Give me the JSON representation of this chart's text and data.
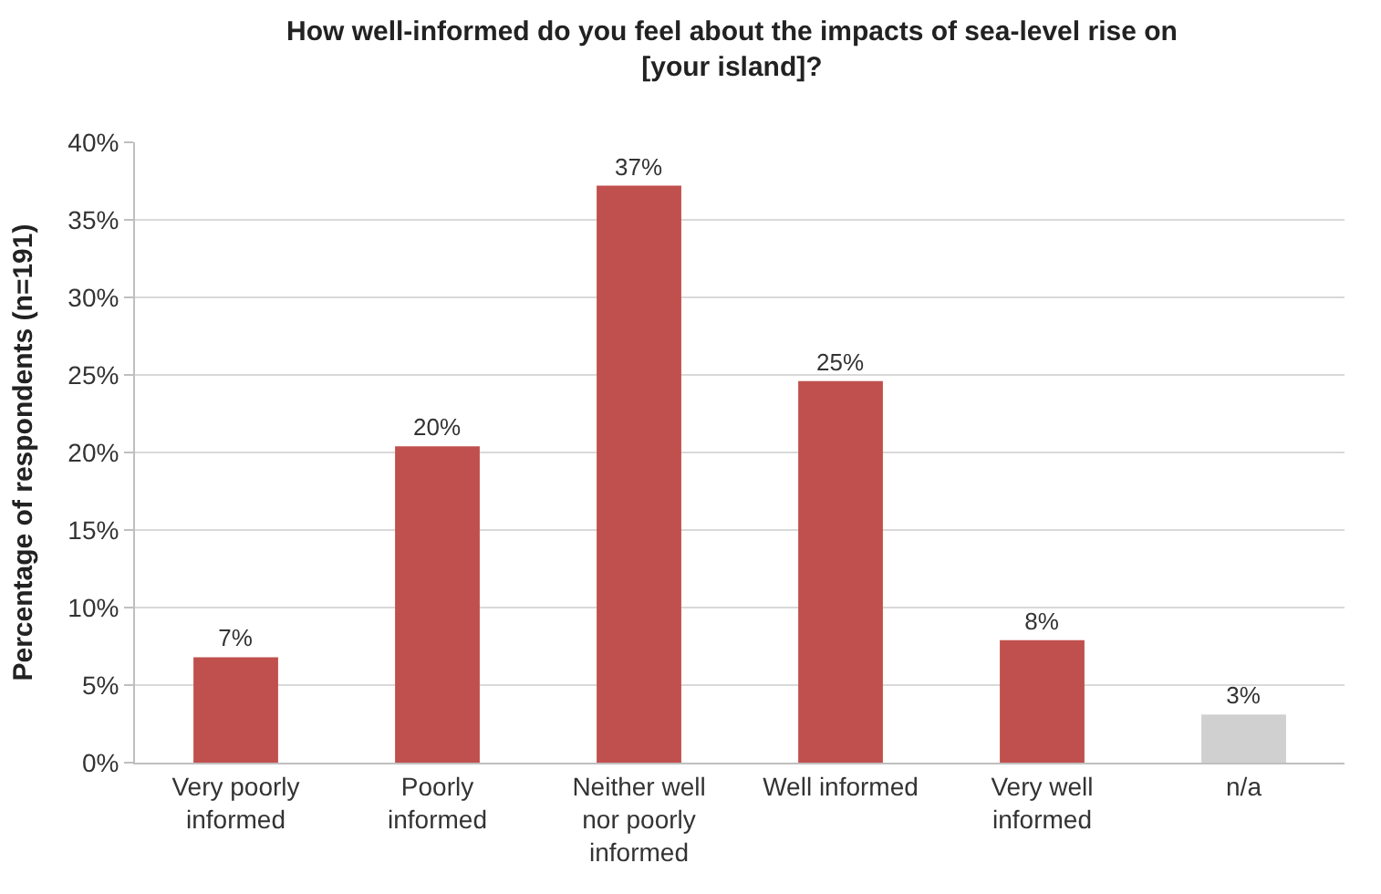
{
  "chart_data": {
    "type": "bar",
    "title": "How well-informed do you feel about the impacts of sea-level rise on\n[your island]?",
    "ylabel": "Percentage of respondents (n=191)",
    "categories": [
      "Very poorly\ninformed",
      "Poorly\ninformed",
      "Neither well\nnor poorly\ninformed",
      "Well informed",
      "Very well\ninformed",
      "n/a"
    ],
    "values": [
      6.8,
      20.4,
      37.2,
      24.6,
      7.9,
      3.1
    ],
    "colors": [
      "#c0504d",
      "#c0504d",
      "#c0504d",
      "#c0504d",
      "#c0504d",
      "#d0d0d0"
    ],
    "value_labels": [
      "7%",
      "20%",
      "37%",
      "25%",
      "8%",
      "3%"
    ],
    "ylim": [
      0,
      40
    ],
    "yticks": [
      {
        "value": 0,
        "label": "0%"
      },
      {
        "value": 5,
        "label": "5%"
      },
      {
        "value": 10,
        "label": "10%"
      },
      {
        "value": 15,
        "label": "15%"
      },
      {
        "value": 20,
        "label": "20%"
      },
      {
        "value": 25,
        "label": "25%"
      },
      {
        "value": 30,
        "label": "30%"
      },
      {
        "value": 35,
        "label": "35%"
      },
      {
        "value": 40,
        "label": "40%"
      }
    ],
    "grid": "y"
  }
}
